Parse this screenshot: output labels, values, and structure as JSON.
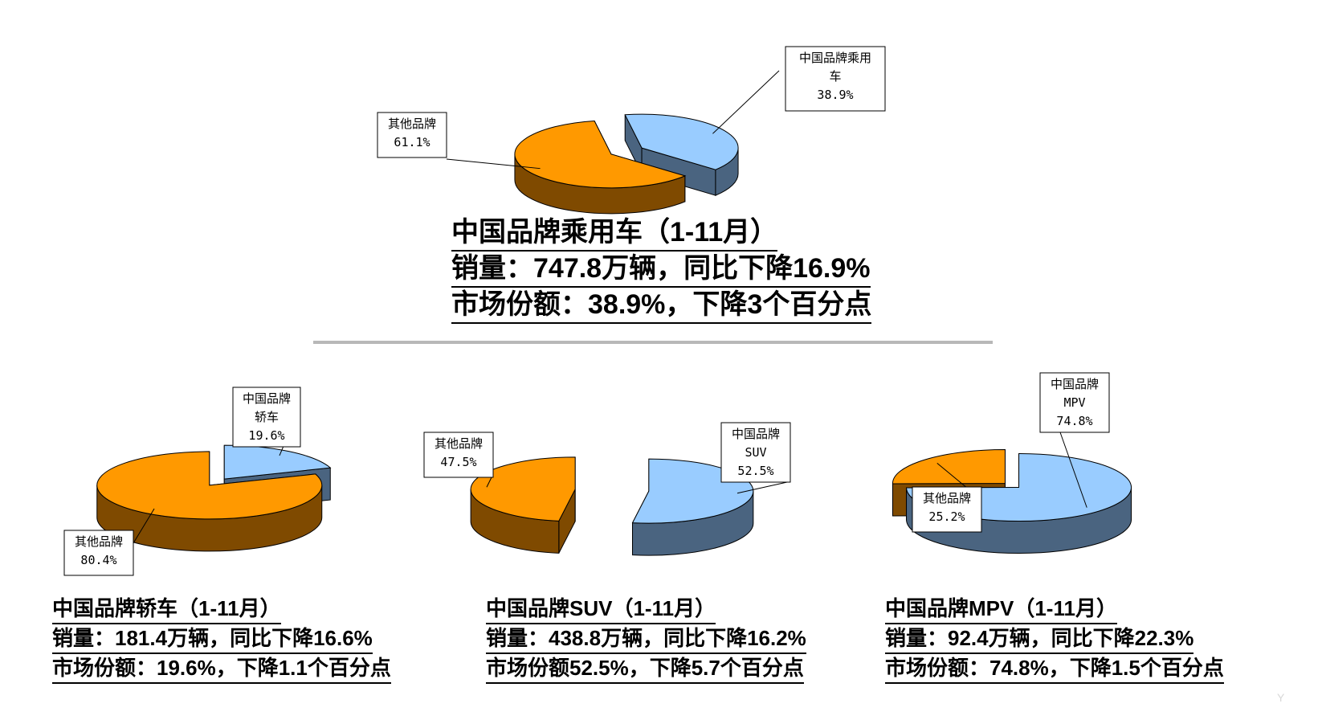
{
  "colors": {
    "china_top": "#99ccff",
    "china_side": "#4a6480",
    "other_top": "#ff9900",
    "other_side": "#7f4a00",
    "divider": "#b8b8b8"
  },
  "chart_data": [
    {
      "type": "pie",
      "id": "passenger",
      "slices": [
        {
          "label": [
            "中国品牌乘用",
            "车"
          ],
          "value": 38.9,
          "value_text": "38.9%"
        },
        {
          "label": [
            "其他品牌"
          ],
          "value": 61.1,
          "value_text": "61.1%"
        }
      ],
      "caption": [
        "中国品牌乘用车（1-11月）",
        "销量：747.8万辆，同比下降16.9%",
        "市场份额：38.9%，下降3个百分点"
      ]
    },
    {
      "type": "pie",
      "id": "sedan",
      "slices": [
        {
          "label": [
            "中国品牌",
            "轿车"
          ],
          "value": 19.6,
          "value_text": "19.6%"
        },
        {
          "label": [
            "其他品牌"
          ],
          "value": 80.4,
          "value_text": "80.4%"
        }
      ],
      "caption": [
        "中国品牌轿车（1-11月）",
        "销量：181.4万辆，同比下降16.6%",
        "市场份额：19.6%，下降1.1个百分点"
      ]
    },
    {
      "type": "pie",
      "id": "suv",
      "slices": [
        {
          "label": [
            "中国品牌",
            "SUV"
          ],
          "value": 52.5,
          "value_text": "52.5%"
        },
        {
          "label": [
            "其他品牌"
          ],
          "value": 47.5,
          "value_text": "47.5%"
        }
      ],
      "caption": [
        "中国品牌SUV（1-11月）",
        "销量：438.8万辆，同比下降16.2%",
        "市场份额52.5%，下降5.7个百分点"
      ]
    },
    {
      "type": "pie",
      "id": "mpv",
      "slices": [
        {
          "label": [
            "中国品牌",
            "MPV"
          ],
          "value": 74.8,
          "value_text": "74.8%"
        },
        {
          "label": [
            "其他品牌"
          ],
          "value": 25.2,
          "value_text": "25.2%"
        }
      ],
      "caption": [
        "中国品牌MPV（1-11月）",
        "销量：92.4万辆，同比下降22.3%",
        "市场份额：74.8%，下降1.5个百分点"
      ]
    }
  ]
}
